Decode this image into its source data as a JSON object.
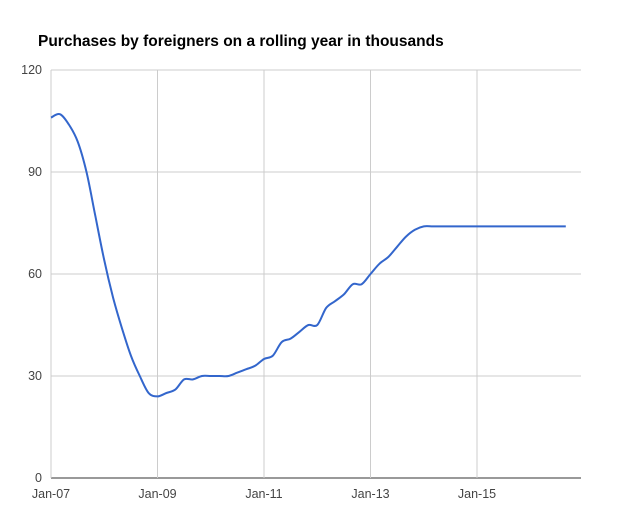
{
  "chart_data": {
    "type": "line",
    "title": "Purchases by foreigners on a rolling year in thousands",
    "xlabel": "",
    "ylabel": "",
    "ylim": [
      0,
      120
    ],
    "y_ticks": [
      "0",
      "30",
      "60",
      "90",
      "120"
    ],
    "x_ticks": [
      "Jan-07",
      "Jan-09",
      "Jan-11",
      "Jan-13",
      "Jan-15"
    ],
    "x_range": [
      "2007-01",
      "2016-09"
    ],
    "grid": true,
    "legend": "none",
    "line_color": "#3366cc",
    "series": [
      {
        "x": [
          "2007-01",
          "2007-03",
          "2007-05",
          "2007-07",
          "2007-09",
          "2007-11",
          "2008-01",
          "2008-03",
          "2008-05",
          "2008-07",
          "2008-09",
          "2008-11",
          "2009-01",
          "2009-03",
          "2009-05",
          "2009-07",
          "2009-09",
          "2009-11",
          "2010-01",
          "2010-03",
          "2010-05",
          "2010-07",
          "2010-09",
          "2010-11",
          "2011-01",
          "2011-03",
          "2011-05",
          "2011-07",
          "2011-09",
          "2011-11",
          "2012-01",
          "2012-03",
          "2012-05",
          "2012-07",
          "2012-09",
          "2012-11",
          "2013-01",
          "2013-03",
          "2013-05",
          "2013-07",
          "2013-09",
          "2013-11",
          "2014-01",
          "2014-03",
          "2014-05",
          "2014-07",
          "2014-09",
          "2014-11",
          "2015-01",
          "2015-03",
          "2015-05",
          "2015-07",
          "2015-09",
          "2015-11",
          "2016-01",
          "2016-03",
          "2016-05",
          "2016-07",
          "2016-09"
        ],
        "values": [
          106,
          107,
          104,
          99,
          90,
          77,
          64,
          53,
          44,
          36,
          30,
          25,
          24,
          25,
          26,
          29,
          29,
          30,
          30,
          30,
          30,
          31,
          32,
          33,
          35,
          36,
          40,
          41,
          43,
          45,
          45,
          50,
          52,
          54,
          57,
          57,
          60,
          63,
          65,
          68,
          71,
          73,
          74,
          74,
          74,
          74,
          74,
          74,
          74,
          74,
          74,
          74,
          74,
          74,
          74,
          74,
          74,
          74,
          74
        ]
      }
    ]
  }
}
